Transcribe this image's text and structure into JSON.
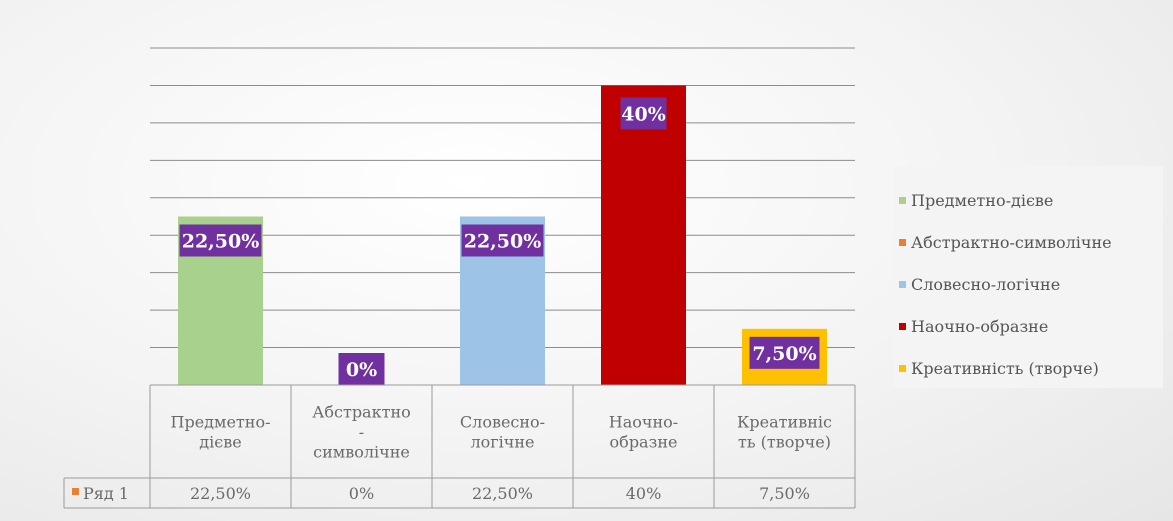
{
  "chart_data": {
    "type": "bar",
    "categories": [
      "Предметно-дієве",
      "Абстрактно-символічне",
      "Словесно-логічне",
      "Наочно-образне",
      "Креативність (творче)"
    ],
    "category_labels_table": [
      [
        "Предметно-",
        "дієве"
      ],
      [
        "Абстрактно",
        "-",
        "символічне"
      ],
      [
        "Словесно-",
        "логічне"
      ],
      [
        "Наочно-",
        "образне"
      ],
      [
        "Креативніс",
        "ть (творче)"
      ]
    ],
    "series": [
      {
        "name": "Ряд 1",
        "values": [
          22.5,
          0,
          22.5,
          40,
          7.5
        ]
      }
    ],
    "data_labels": [
      "22,50%",
      "0%",
      "22,50%",
      "40%",
      "7,50%"
    ],
    "table_values": [
      "22,50%",
      "0%",
      "22,50%",
      "40%",
      "7,50%"
    ],
    "bar_colors": [
      "#a9d18e",
      "#ed7d31",
      "#9dc3e6",
      "#c00000",
      "#ffc000"
    ],
    "label_bg_color": "#7030a0",
    "ylim": [
      0,
      45
    ],
    "grid": true,
    "legend_placement": "right",
    "legend": [
      {
        "label": "Предметно-дієве",
        "color": "#a9d18e"
      },
      {
        "label": "Абстрактно-символічне",
        "color": "#ed7d31"
      },
      {
        "label": "Словесно-логічне",
        "color": "#9dc3e6"
      },
      {
        "label": "Наочно-образне",
        "color": "#c00000"
      },
      {
        "label": "Креативність (творче)",
        "color": "#ffc000"
      }
    ],
    "series_marker_color": "#ed7d31"
  }
}
